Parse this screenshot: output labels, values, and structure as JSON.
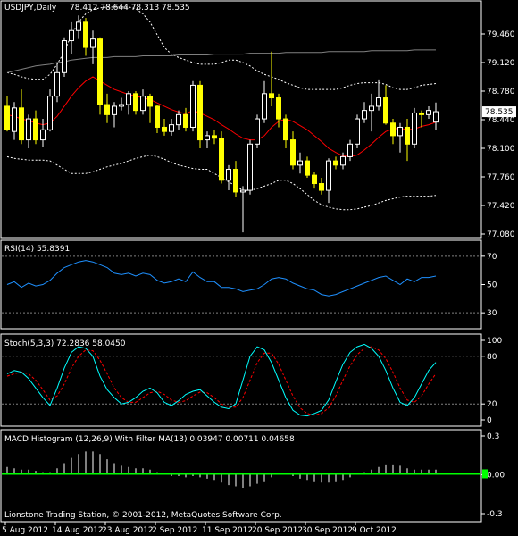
{
  "header": {
    "symbol": "USDJPY,Daily",
    "ohlc": "78.412 78.644 78.313 78.535"
  },
  "footer": {
    "copyright": "Lionstone Trading Station, © 2001-2012, MetaQuotes Software Corp."
  },
  "colors": {
    "background": "#000000",
    "grid": "#808080",
    "bull_candle": "#ffffff",
    "bear_candle": "#ffff00",
    "ma_red": "#ff0000",
    "long_ma": "#808080",
    "bands": "#ffffff",
    "rsi_line": "#1e90ff",
    "stoch_main": "#00ffff",
    "stoch_signal": "#ff0000",
    "macd_hist": "#ffffff",
    "macd_filter": "#00ff00",
    "price_marker": "#ffffff"
  },
  "chart_data": [
    {
      "type": "candlestick",
      "title": "USDJPY,Daily",
      "ylim": [
        77.08,
        79.8
      ],
      "yticks": [
        "79.460",
        "79.120",
        "78.780",
        "78.440",
        "78.100",
        "77.760",
        "77.420",
        "77.080"
      ],
      "ytick_values": [
        79.46,
        79.12,
        78.78,
        78.44,
        78.1,
        77.76,
        77.42,
        77.08
      ],
      "current_price": "78.535",
      "current_price_value": 78.535,
      "candles": [
        {
          "o": 78.6,
          "h": 78.72,
          "l": 78.3,
          "c": 78.32
        },
        {
          "o": 78.3,
          "h": 78.65,
          "l": 78.2,
          "c": 78.58
        },
        {
          "o": 78.58,
          "h": 78.8,
          "l": 78.15,
          "c": 78.2
        },
        {
          "o": 78.2,
          "h": 78.5,
          "l": 78.1,
          "c": 78.45
        },
        {
          "o": 78.45,
          "h": 78.55,
          "l": 78.15,
          "c": 78.2
        },
        {
          "o": 78.2,
          "h": 78.45,
          "l": 78.12,
          "c": 78.32
        },
        {
          "o": 78.32,
          "h": 78.8,
          "l": 78.3,
          "c": 78.72
        },
        {
          "o": 78.72,
          "h": 79.12,
          "l": 78.65,
          "c": 79.0
        },
        {
          "o": 79.0,
          "h": 79.42,
          "l": 78.95,
          "c": 79.38
        },
        {
          "o": 79.38,
          "h": 79.6,
          "l": 79.22,
          "c": 79.5
        },
        {
          "o": 79.5,
          "h": 79.68,
          "l": 79.4,
          "c": 79.6
        },
        {
          "o": 79.6,
          "h": 79.65,
          "l": 79.2,
          "c": 79.3
        },
        {
          "o": 79.3,
          "h": 79.5,
          "l": 79.1,
          "c": 79.4
        },
        {
          "o": 79.4,
          "h": 79.42,
          "l": 78.5,
          "c": 78.62
        },
        {
          "o": 78.62,
          "h": 78.75,
          "l": 78.4,
          "c": 78.5
        },
        {
          "o": 78.5,
          "h": 78.65,
          "l": 78.35,
          "c": 78.6
        },
        {
          "o": 78.6,
          "h": 78.7,
          "l": 78.55,
          "c": 78.62
        },
        {
          "o": 78.62,
          "h": 78.78,
          "l": 78.5,
          "c": 78.75
        },
        {
          "o": 78.75,
          "h": 78.78,
          "l": 78.5,
          "c": 78.55
        },
        {
          "o": 78.55,
          "h": 78.8,
          "l": 78.5,
          "c": 78.72
        },
        {
          "o": 78.72,
          "h": 78.75,
          "l": 78.4,
          "c": 78.6
        },
        {
          "o": 78.6,
          "h": 78.62,
          "l": 78.28,
          "c": 78.35
        },
        {
          "o": 78.35,
          "h": 78.45,
          "l": 78.25,
          "c": 78.3
        },
        {
          "o": 78.3,
          "h": 78.45,
          "l": 78.25,
          "c": 78.38
        },
        {
          "o": 78.38,
          "h": 78.55,
          "l": 78.32,
          "c": 78.5
        },
        {
          "o": 78.5,
          "h": 78.58,
          "l": 78.3,
          "c": 78.35
        },
        {
          "o": 78.35,
          "h": 78.9,
          "l": 78.3,
          "c": 78.85
        },
        {
          "o": 78.85,
          "h": 78.9,
          "l": 78.1,
          "c": 78.2
        },
        {
          "o": 78.2,
          "h": 78.3,
          "l": 78.1,
          "c": 78.25
        },
        {
          "o": 78.25,
          "h": 78.32,
          "l": 78.15,
          "c": 78.22
        },
        {
          "o": 78.22,
          "h": 78.3,
          "l": 77.68,
          "c": 77.72
        },
        {
          "o": 77.72,
          "h": 77.9,
          "l": 77.6,
          "c": 77.85
        },
        {
          "o": 77.85,
          "h": 77.95,
          "l": 77.52,
          "c": 77.58
        },
        {
          "o": 77.58,
          "h": 77.65,
          "l": 77.1,
          "c": 77.6
        },
        {
          "o": 77.6,
          "h": 78.2,
          "l": 77.55,
          "c": 78.15
        },
        {
          "o": 78.15,
          "h": 78.5,
          "l": 78.1,
          "c": 78.45
        },
        {
          "o": 78.45,
          "h": 78.9,
          "l": 78.4,
          "c": 78.75
        },
        {
          "o": 78.75,
          "h": 79.25,
          "l": 78.6,
          "c": 78.7
        },
        {
          "o": 78.7,
          "h": 78.75,
          "l": 78.35,
          "c": 78.45
        },
        {
          "o": 78.45,
          "h": 78.5,
          "l": 78.1,
          "c": 78.2
        },
        {
          "o": 78.2,
          "h": 78.3,
          "l": 77.85,
          "c": 77.9
        },
        {
          "o": 77.9,
          "h": 78.05,
          "l": 77.8,
          "c": 77.95
        },
        {
          "o": 77.95,
          "h": 78.0,
          "l": 77.75,
          "c": 77.78
        },
        {
          "o": 77.78,
          "h": 77.82,
          "l": 77.62,
          "c": 77.68
        },
        {
          "o": 77.68,
          "h": 77.75,
          "l": 77.55,
          "c": 77.6
        },
        {
          "o": 77.6,
          "h": 77.98,
          "l": 77.45,
          "c": 77.95
        },
        {
          "o": 77.95,
          "h": 78.0,
          "l": 77.85,
          "c": 77.9
        },
        {
          "o": 77.9,
          "h": 78.05,
          "l": 77.85,
          "c": 78.0
        },
        {
          "o": 78.0,
          "h": 78.2,
          "l": 77.95,
          "c": 78.15
        },
        {
          "o": 78.15,
          "h": 78.5,
          "l": 78.1,
          "c": 78.45
        },
        {
          "o": 78.45,
          "h": 78.65,
          "l": 78.4,
          "c": 78.55
        },
        {
          "o": 78.55,
          "h": 78.75,
          "l": 78.3,
          "c": 78.6
        },
        {
          "o": 78.6,
          "h": 78.92,
          "l": 78.55,
          "c": 78.7
        },
        {
          "o": 78.7,
          "h": 78.85,
          "l": 78.38,
          "c": 78.4
        },
        {
          "o": 78.4,
          "h": 78.45,
          "l": 78.15,
          "c": 78.25
        },
        {
          "o": 78.25,
          "h": 78.4,
          "l": 78.05,
          "c": 78.35
        },
        {
          "o": 78.35,
          "h": 78.45,
          "l": 77.95,
          "c": 78.15
        },
        {
          "o": 78.15,
          "h": 78.58,
          "l": 78.1,
          "c": 78.52
        },
        {
          "o": 78.52,
          "h": 78.55,
          "l": 78.35,
          "c": 78.5
        },
        {
          "o": 78.5,
          "h": 78.6,
          "l": 78.45,
          "c": 78.55
        },
        {
          "o": 78.412,
          "h": 78.644,
          "l": 78.313,
          "c": 78.535
        }
      ],
      "ma_short": [
        78.5,
        78.48,
        78.45,
        78.43,
        78.4,
        78.38,
        78.4,
        78.48,
        78.6,
        78.72,
        78.82,
        78.9,
        78.95,
        78.9,
        78.85,
        78.8,
        78.77,
        78.74,
        78.72,
        78.7,
        78.68,
        78.64,
        78.6,
        78.56,
        78.53,
        78.51,
        78.55,
        78.52,
        78.48,
        78.44,
        78.38,
        78.33,
        78.27,
        78.22,
        78.2,
        78.2,
        78.25,
        78.35,
        78.42,
        78.45,
        78.42,
        78.37,
        78.32,
        78.25,
        78.18,
        78.1,
        78.05,
        78.01,
        78.0,
        78.02,
        78.08,
        78.15,
        78.23,
        78.3,
        78.33,
        78.34,
        78.32,
        78.33,
        78.36,
        78.38,
        78.41
      ],
      "ma_long": [
        79.0,
        79.02,
        79.04,
        79.06,
        79.08,
        79.09,
        79.1,
        79.12,
        79.13,
        79.15,
        79.16,
        79.17,
        79.18,
        79.18,
        79.18,
        79.19,
        79.19,
        79.19,
        79.19,
        79.2,
        79.2,
        79.2,
        79.2,
        79.2,
        79.21,
        79.21,
        79.21,
        79.21,
        79.21,
        79.22,
        79.22,
        79.22,
        79.22,
        79.22,
        79.23,
        79.23,
        79.23,
        79.23,
        79.23,
        79.24,
        79.24,
        79.24,
        79.24,
        79.24,
        79.24,
        79.25,
        79.25,
        79.25,
        79.25,
        79.25,
        79.25,
        79.26,
        79.26,
        79.26,
        79.26,
        79.26,
        79.26,
        79.27,
        79.27,
        79.27,
        79.27
      ],
      "band_upper": [
        79.0,
        78.98,
        78.95,
        78.93,
        78.92,
        78.92,
        78.98,
        79.1,
        79.25,
        79.45,
        79.6,
        79.7,
        79.75,
        79.77,
        79.78,
        79.78,
        79.78,
        79.78,
        79.76,
        79.7,
        79.6,
        79.45,
        79.3,
        79.22,
        79.18,
        79.15,
        79.12,
        79.1,
        79.1,
        79.1,
        79.12,
        79.15,
        79.15,
        79.12,
        79.08,
        79.02,
        78.98,
        78.95,
        78.92,
        78.88,
        78.85,
        78.82,
        78.8,
        78.8,
        78.8,
        78.8,
        78.8,
        78.82,
        78.85,
        78.87,
        78.88,
        78.88,
        78.88,
        78.86,
        78.82,
        78.8,
        78.8,
        78.82,
        78.85,
        78.86,
        78.87
      ],
      "band_lower": [
        78.0,
        77.98,
        77.97,
        77.96,
        77.96,
        77.96,
        77.95,
        77.9,
        77.85,
        77.8,
        77.8,
        77.8,
        77.82,
        77.85,
        77.88,
        77.9,
        77.92,
        77.95,
        77.98,
        78.0,
        78.02,
        78.0,
        77.97,
        77.93,
        77.9,
        77.88,
        77.86,
        77.85,
        77.85,
        77.8,
        77.75,
        77.7,
        77.65,
        77.6,
        77.6,
        77.62,
        77.65,
        77.68,
        77.72,
        77.72,
        77.68,
        77.62,
        77.55,
        77.48,
        77.43,
        77.4,
        77.38,
        77.37,
        77.37,
        77.38,
        77.4,
        77.42,
        77.45,
        77.48,
        77.5,
        77.52,
        77.53,
        77.53,
        77.53,
        77.53,
        77.54
      ]
    },
    {
      "type": "line",
      "title": "RSI(14) 55.8391",
      "ylim": [
        20,
        80
      ],
      "yticks": [
        "70",
        "50",
        "30"
      ],
      "ytick_values": [
        70,
        50,
        30
      ],
      "series": [
        {
          "values": [
            50,
            52,
            48,
            51,
            49,
            50,
            53,
            58,
            62,
            64,
            66,
            67,
            66,
            64,
            62,
            58,
            57,
            58,
            56,
            58,
            57,
            53,
            51,
            52,
            54,
            52,
            59,
            55,
            52,
            52,
            48,
            48,
            47,
            45,
            46,
            47,
            50,
            54,
            55,
            54,
            51,
            49,
            47,
            46,
            43,
            42,
            43,
            45,
            47,
            49,
            51,
            53,
            55,
            56,
            53,
            50,
            54,
            52,
            55,
            55,
            56
          ]
        }
      ]
    },
    {
      "type": "line",
      "title": "Stoch(5,3,3) 72.2836 58.0450",
      "ylim": [
        0,
        100
      ],
      "yticks": [
        "100",
        "80",
        "20",
        "0"
      ],
      "ytick_values": [
        100,
        80,
        20,
        0
      ],
      "series": [
        {
          "values": [
            58,
            62,
            60,
            52,
            40,
            28,
            18,
            40,
            65,
            85,
            92,
            90,
            80,
            55,
            38,
            28,
            20,
            22,
            28,
            36,
            40,
            34,
            22,
            18,
            24,
            32,
            36,
            38,
            30,
            22,
            16,
            14,
            20,
            50,
            80,
            92,
            88,
            72,
            50,
            28,
            12,
            6,
            5,
            8,
            12,
            25,
            48,
            70,
            85,
            92,
            95,
            90,
            80,
            62,
            40,
            22,
            18,
            28,
            45,
            62,
            72.2836
          ]
        },
        {
          "values": [
            55,
            58,
            60,
            58,
            50,
            38,
            25,
            30,
            45,
            65,
            80,
            88,
            87,
            75,
            58,
            40,
            28,
            22,
            22,
            28,
            34,
            36,
            32,
            25,
            22,
            24,
            30,
            35,
            34,
            28,
            20,
            16,
            16,
            28,
            50,
            72,
            84,
            84,
            70,
            50,
            30,
            15,
            8,
            6,
            8,
            15,
            30,
            50,
            68,
            82,
            90,
            92,
            88,
            77,
            60,
            40,
            25,
            22,
            30,
            45,
            58.045
          ]
        }
      ]
    },
    {
      "type": "bar",
      "title": "MACD Histogram (12,26,9) With Filter MA(13) 0.03947 0.00711 0.04658",
      "ylim": [
        -0.3,
        0.3
      ],
      "yticks": [
        "0.3",
        "0.00",
        "-0.3"
      ],
      "ytick_values": [
        0.3,
        0,
        -0.3
      ],
      "values": [
        0.06,
        0.05,
        0.04,
        0.04,
        0.03,
        0.02,
        0.02,
        0.05,
        0.09,
        0.13,
        0.16,
        0.18,
        0.18,
        0.16,
        0.12,
        0.09,
        0.07,
        0.06,
        0.05,
        0.05,
        0.04,
        0.02,
        0.0,
        -0.01,
        -0.01,
        -0.02,
        -0.01,
        -0.02,
        -0.03,
        -0.04,
        -0.06,
        -0.08,
        -0.09,
        -0.1,
        -0.09,
        -0.07,
        -0.05,
        -0.02,
        0.0,
        0.0,
        -0.01,
        -0.03,
        -0.04,
        -0.05,
        -0.06,
        -0.06,
        -0.05,
        -0.04,
        -0.02,
        0.0,
        0.02,
        0.04,
        0.06,
        0.08,
        0.08,
        0.07,
        0.05,
        0.04,
        0.04,
        0.04,
        0.03947
      ],
      "filter_value": 0.00711
    }
  ],
  "x_axis": {
    "labels": [
      "5 Aug 2012",
      "14 Aug 2012",
      "23 Aug 2012",
      "2 Sep 2012",
      "11 Sep 2012",
      "20 Sep 2012",
      "30 Sep 2012",
      "9 Oct 2012"
    ]
  }
}
